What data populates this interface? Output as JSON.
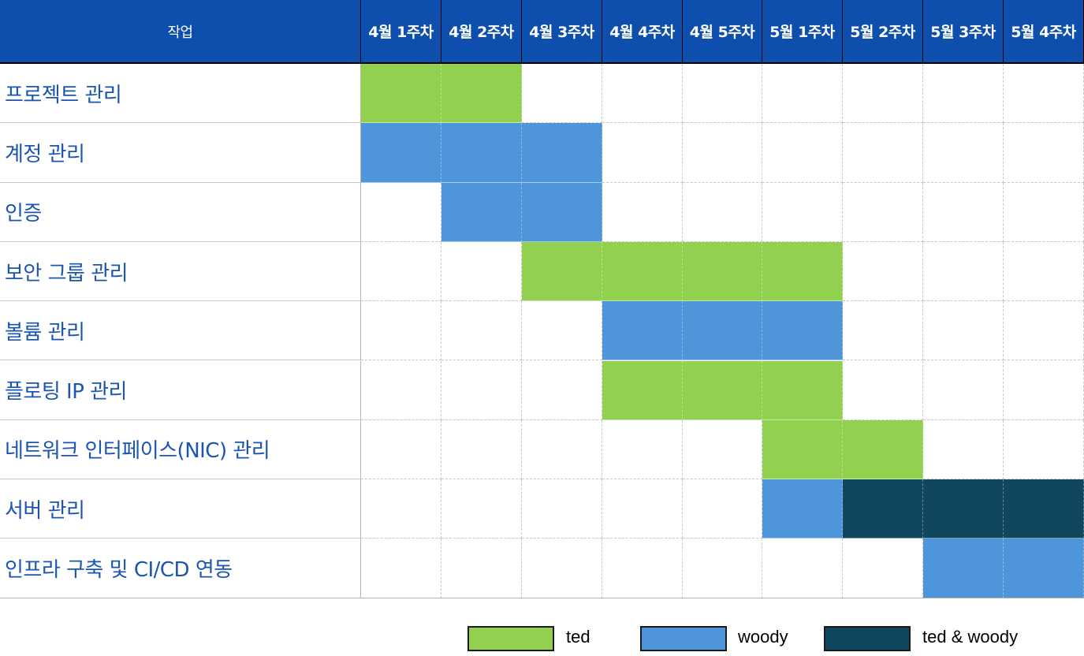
{
  "header": {
    "task_label": "작업",
    "weeks": [
      "4월 1주차",
      "4월 2주차",
      "4월 3주차",
      "4월 4주차",
      "4월 5주차",
      "5월 1주차",
      "5월 2주차",
      "5월 3주차",
      "5월 4주차"
    ]
  },
  "colors": {
    "ted": "#92d050",
    "woody": "#4f95d9",
    "both": "#10475e",
    "header": "#0e4fae"
  },
  "tasks": [
    {
      "name": "프로젝트 관리",
      "cells": [
        "ted",
        "ted",
        "",
        "",
        "",
        "",
        "",
        "",
        ""
      ]
    },
    {
      "name": "계정 관리",
      "cells": [
        "woody",
        "woody",
        "woody",
        "",
        "",
        "",
        "",
        "",
        ""
      ]
    },
    {
      "name": "인증",
      "cells": [
        "",
        "woody",
        "woody",
        "",
        "",
        "",
        "",
        "",
        ""
      ]
    },
    {
      "name": "보안 그룹 관리",
      "cells": [
        "",
        "",
        "ted",
        "ted",
        "ted",
        "ted",
        "",
        "",
        ""
      ]
    },
    {
      "name": "볼륨 관리",
      "cells": [
        "",
        "",
        "",
        "woody",
        "woody",
        "woody",
        "",
        "",
        ""
      ]
    },
    {
      "name": "플로팅 IP 관리",
      "cells": [
        "",
        "",
        "",
        "ted",
        "ted",
        "ted",
        "",
        "",
        ""
      ]
    },
    {
      "name": "네트워크 인터페이스(NIC) 관리",
      "cells": [
        "",
        "",
        "",
        "",
        "",
        "ted",
        "ted",
        "",
        ""
      ]
    },
    {
      "name": "서버 관리",
      "cells": [
        "",
        "",
        "",
        "",
        "",
        "woody",
        "both",
        "both",
        "both"
      ]
    },
    {
      "name": "인프라 구축 및  CI/CD 연동",
      "cells": [
        "",
        "",
        "",
        "",
        "",
        "",
        "",
        "woody",
        "woody"
      ]
    }
  ],
  "legend": [
    {
      "key": "ted",
      "label": "ted"
    },
    {
      "key": "woody",
      "label": "woody"
    },
    {
      "key": "both",
      "label": "ted & woody"
    }
  ]
}
